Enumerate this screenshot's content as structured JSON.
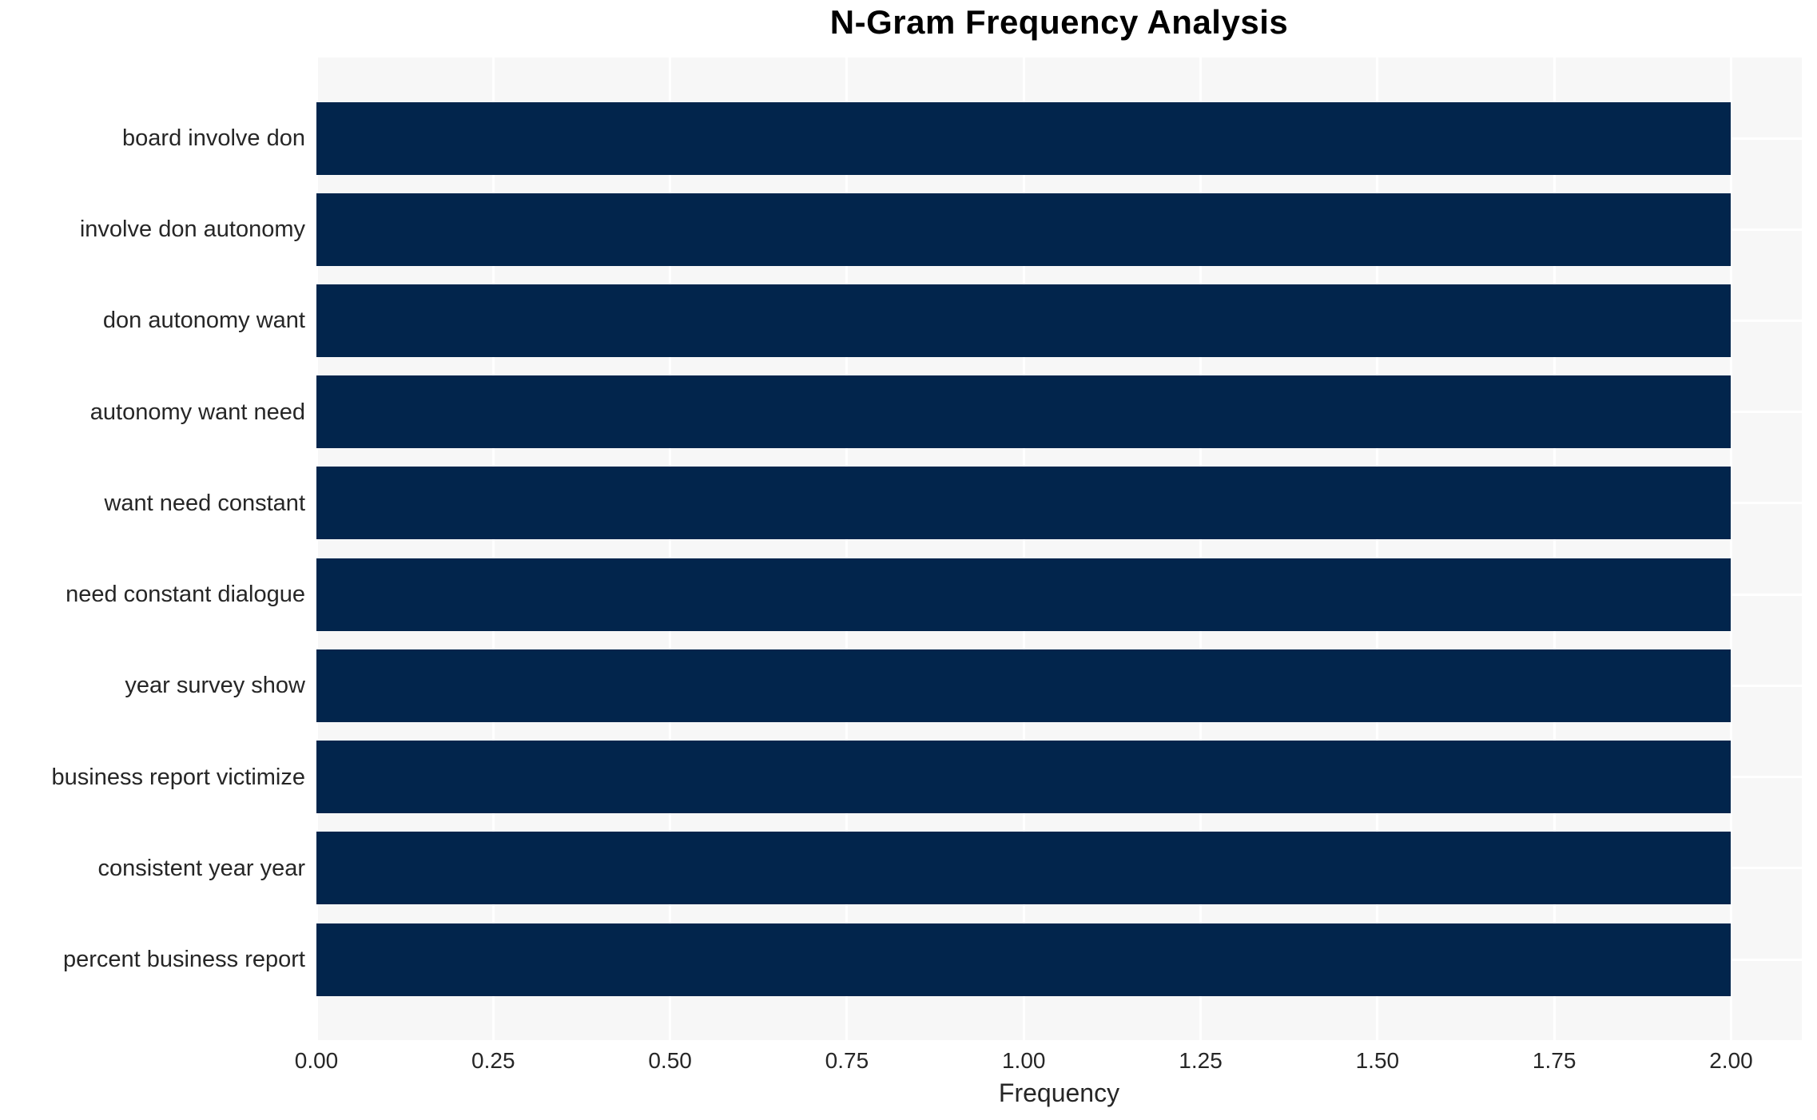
{
  "figure": {
    "background": "#ffffff",
    "plot_background": "#f7f7f7",
    "grid_color": "#ffffff",
    "bar_color": "#02254c",
    "text_color": "#262626",
    "title_color": "#000000"
  },
  "chart_data": {
    "type": "bar",
    "orientation": "horizontal",
    "title": "N-Gram Frequency Analysis",
    "xlabel": "Frequency",
    "ylabel": "",
    "categories": [
      "board involve don",
      "involve don autonomy",
      "don autonomy want",
      "autonomy want need",
      "want need constant",
      "need constant dialogue",
      "year survey show",
      "business report victimize",
      "consistent year year",
      "percent business report"
    ],
    "values": [
      2,
      2,
      2,
      2,
      2,
      2,
      2,
      2,
      2,
      2
    ],
    "xlim": [
      0,
      2.1
    ],
    "xticks": [
      0,
      0.25,
      0.5,
      0.75,
      1,
      1.25,
      1.5,
      1.75,
      2
    ],
    "xtick_labels": [
      "0.00",
      "0.25",
      "0.50",
      "0.75",
      "1.00",
      "1.25",
      "1.50",
      "1.75",
      "2.00"
    ],
    "grid": true,
    "legend": "none"
  }
}
